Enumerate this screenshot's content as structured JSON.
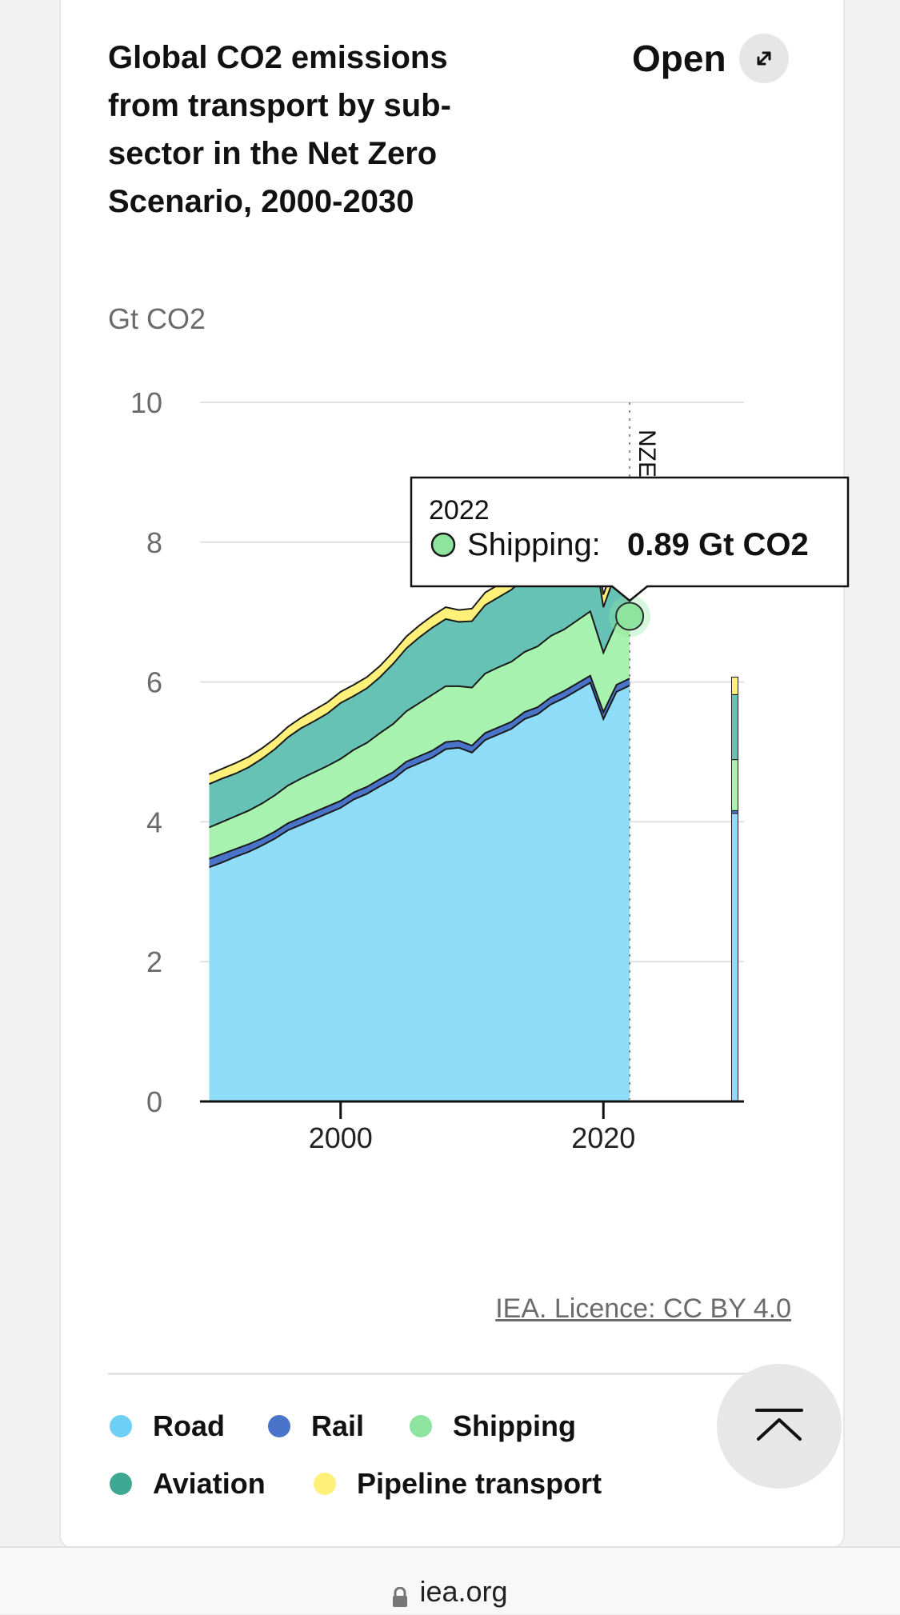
{
  "card": {
    "title": "Global CO2 emissions from transport by sub-sector in the Net Zero Scenario, 2000-2030",
    "open_label": "Open",
    "unit_label": "Gt CO2",
    "credit": "IEA. Licence: CC BY 4.0"
  },
  "tooltip": {
    "year": "2022",
    "series": "Shipping:",
    "value": "0.89 Gt CO2",
    "color": "#8ee39e"
  },
  "legend": [
    {
      "label": "Road",
      "color": "#6ecff6"
    },
    {
      "label": "Rail",
      "color": "#4a74c9"
    },
    {
      "label": "Shipping",
      "color": "#8ee39e"
    },
    {
      "label": "Aviation",
      "color": "#3fa894"
    },
    {
      "label": "Pipeline transport",
      "color": "#fff07a"
    }
  ],
  "browser": {
    "domain": "iea.org"
  },
  "chart_data": {
    "type": "area",
    "ylabel": "Gt CO2",
    "ylim": [
      0,
      10
    ],
    "yticks": [
      0,
      2,
      4,
      6,
      8,
      10
    ],
    "xticks": [
      2000,
      2020
    ],
    "xlim": [
      1989.3,
      2030.7
    ],
    "marker": {
      "x": 2022,
      "label": "NZE"
    },
    "x": [
      1990,
      1991,
      1992,
      1993,
      1994,
      1995,
      1996,
      1997,
      1998,
      1999,
      2000,
      2001,
      2002,
      2003,
      2004,
      2005,
      2006,
      2007,
      2008,
      2009,
      2010,
      2011,
      2012,
      2013,
      2014,
      2015,
      2016,
      2017,
      2018,
      2019,
      2020,
      2021,
      2022
    ],
    "series": [
      {
        "name": "Road",
        "color": "#8fdcf8",
        "values": [
          3.35,
          3.42,
          3.5,
          3.57,
          3.66,
          3.76,
          3.88,
          3.96,
          4.04,
          4.12,
          4.2,
          4.32,
          4.4,
          4.51,
          4.61,
          4.76,
          4.84,
          4.92,
          5.04,
          5.06,
          4.99,
          5.17,
          5.25,
          5.33,
          5.47,
          5.54,
          5.68,
          5.77,
          5.88,
          5.99,
          5.47,
          5.86,
          5.95
        ]
      },
      {
        "name": "Rail",
        "color": "#4a74c9",
        "values": [
          0.12,
          0.12,
          0.11,
          0.11,
          0.1,
          0.1,
          0.1,
          0.1,
          0.1,
          0.1,
          0.1,
          0.1,
          0.1,
          0.1,
          0.1,
          0.1,
          0.1,
          0.1,
          0.1,
          0.1,
          0.1,
          0.1,
          0.1,
          0.1,
          0.1,
          0.1,
          0.1,
          0.1,
          0.1,
          0.1,
          0.1,
          0.1,
          0.1
        ]
      },
      {
        "name": "Shipping",
        "color": "#a6f2ae",
        "values": [
          0.45,
          0.46,
          0.47,
          0.48,
          0.5,
          0.52,
          0.54,
          0.56,
          0.57,
          0.58,
          0.6,
          0.61,
          0.63,
          0.66,
          0.69,
          0.72,
          0.76,
          0.8,
          0.8,
          0.78,
          0.83,
          0.85,
          0.86,
          0.86,
          0.86,
          0.87,
          0.88,
          0.88,
          0.9,
          0.92,
          0.85,
          0.88,
          0.89
        ]
      },
      {
        "name": "Aviation",
        "color": "#66c2b4",
        "values": [
          0.62,
          0.62,
          0.61,
          0.62,
          0.64,
          0.66,
          0.69,
          0.72,
          0.73,
          0.75,
          0.8,
          0.77,
          0.78,
          0.8,
          0.86,
          0.9,
          0.94,
          0.96,
          0.96,
          0.92,
          0.95,
          0.98,
          1.0,
          1.03,
          1.06,
          1.1,
          1.15,
          1.2,
          1.24,
          1.25,
          0.65,
          0.75,
          0.95
        ]
      },
      {
        "name": "Pipeline transport",
        "color": "#fff07a",
        "values": [
          0.14,
          0.14,
          0.15,
          0.15,
          0.15,
          0.15,
          0.15,
          0.15,
          0.16,
          0.16,
          0.16,
          0.16,
          0.16,
          0.16,
          0.17,
          0.17,
          0.17,
          0.17,
          0.17,
          0.17,
          0.18,
          0.18,
          0.18,
          0.18,
          0.18,
          0.18,
          0.19,
          0.19,
          0.19,
          0.19,
          0.18,
          0.19,
          0.19
        ]
      }
    ],
    "projection_2030": {
      "x": 2030,
      "values": [
        4.12,
        0.04,
        0.73,
        0.93,
        0.25
      ]
    }
  }
}
